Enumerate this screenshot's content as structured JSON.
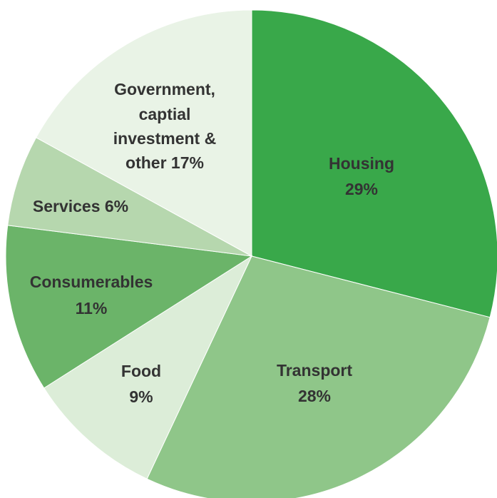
{
  "chart_data": {
    "type": "pie",
    "title": "",
    "start_angle_deg": 0,
    "direction": "clockwise",
    "slices": [
      {
        "label": "Housing",
        "value_label": "29%",
        "value": 29,
        "color": "#39a84a"
      },
      {
        "label": "Transport",
        "value_label": "28%",
        "value": 28,
        "color": "#8fc689"
      },
      {
        "label": "Food",
        "value_label": "9%",
        "value": 9,
        "color": "#dcedd8"
      },
      {
        "label": "Consumerables",
        "value_label": "11%",
        "value": 11,
        "color": "#6bb469"
      },
      {
        "label": "Services",
        "value_label": "6%",
        "value": 6,
        "color": "#b6d7ae"
      },
      {
        "label": "Government, captial investment & other",
        "value_label": "17%",
        "value": 17,
        "color": "#e9f3e6"
      }
    ]
  }
}
